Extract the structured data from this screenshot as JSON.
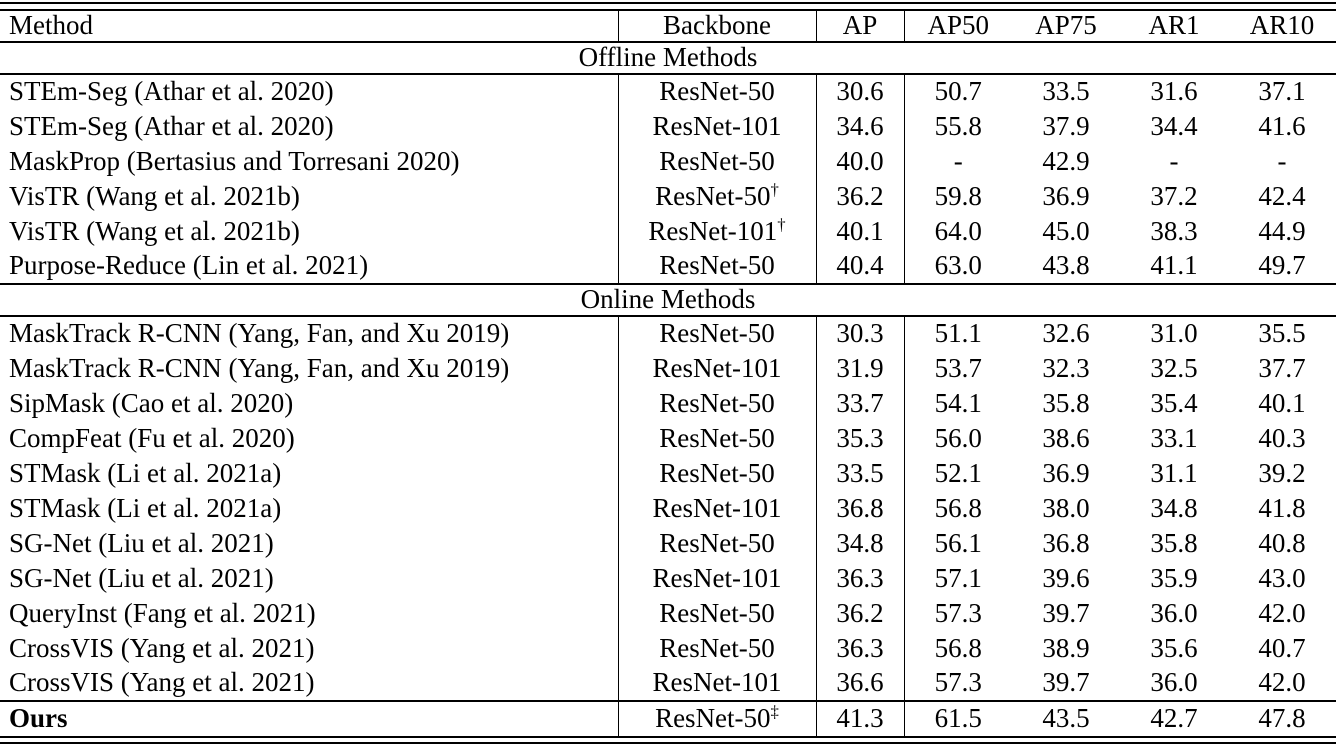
{
  "table": {
    "columns": [
      "Method",
      "Backbone",
      "AP",
      "AP50",
      "AP75",
      "AR1",
      "AR10"
    ],
    "sections": [
      {
        "title": "Offline Methods",
        "rows": [
          {
            "method": "STEm-Seg (Athar et al. 2020)",
            "backbone": "ResNet-50",
            "backbone_sup": "",
            "ap": "30.6",
            "ap50": "50.7",
            "ap75": "33.5",
            "ar1": "31.6",
            "ar10": "37.1"
          },
          {
            "method": "STEm-Seg (Athar et al. 2020)",
            "backbone": "ResNet-101",
            "backbone_sup": "",
            "ap": "34.6",
            "ap50": "55.8",
            "ap75": "37.9",
            "ar1": "34.4",
            "ar10": "41.6"
          },
          {
            "method": "MaskProp (Bertasius and Torresani 2020)",
            "backbone": "ResNet-50",
            "backbone_sup": "",
            "ap": "40.0",
            "ap50": "-",
            "ap75": "42.9",
            "ar1": "-",
            "ar10": "-"
          },
          {
            "method": "VisTR (Wang et al. 2021b)",
            "backbone": "ResNet-50",
            "backbone_sup": "†",
            "ap": "36.2",
            "ap50": "59.8",
            "ap75": "36.9",
            "ar1": "37.2",
            "ar10": "42.4"
          },
          {
            "method": "VisTR (Wang et al. 2021b)",
            "backbone": "ResNet-101",
            "backbone_sup": "†",
            "ap": "40.1",
            "ap50": "64.0",
            "ap75": "45.0",
            "ar1": "38.3",
            "ar10": "44.9"
          },
          {
            "method": "Purpose-Reduce (Lin et al. 2021)",
            "backbone": "ResNet-50",
            "backbone_sup": "",
            "ap": "40.4",
            "ap50": "63.0",
            "ap75": "43.8",
            "ar1": "41.1",
            "ar10": "49.7"
          }
        ]
      },
      {
        "title": "Online Methods",
        "rows": [
          {
            "method": "MaskTrack R-CNN (Yang, Fan, and Xu 2019)",
            "backbone": "ResNet-50",
            "backbone_sup": "",
            "ap": "30.3",
            "ap50": "51.1",
            "ap75": "32.6",
            "ar1": "31.0",
            "ar10": "35.5"
          },
          {
            "method": "MaskTrack R-CNN (Yang, Fan, and Xu 2019)",
            "backbone": "ResNet-101",
            "backbone_sup": "",
            "ap": "31.9",
            "ap50": "53.7",
            "ap75": "32.3",
            "ar1": "32.5",
            "ar10": "37.7"
          },
          {
            "method": "SipMask (Cao et al. 2020)",
            "backbone": "ResNet-50",
            "backbone_sup": "",
            "ap": "33.7",
            "ap50": "54.1",
            "ap75": "35.8",
            "ar1": "35.4",
            "ar10": "40.1"
          },
          {
            "method": "CompFeat (Fu et al. 2020)",
            "backbone": "ResNet-50",
            "backbone_sup": "",
            "ap": "35.3",
            "ap50": "56.0",
            "ap75": "38.6",
            "ar1": "33.1",
            "ar10": "40.3"
          },
          {
            "method": "STMask (Li et al. 2021a)",
            "backbone": "ResNet-50",
            "backbone_sup": "",
            "ap": "33.5",
            "ap50": "52.1",
            "ap75": "36.9",
            "ar1": "31.1",
            "ar10": "39.2"
          },
          {
            "method": "STMask (Li et al. 2021a)",
            "backbone": "ResNet-101",
            "backbone_sup": "",
            "ap": "36.8",
            "ap50": "56.8",
            "ap75": "38.0",
            "ar1": "34.8",
            "ar10": "41.8"
          },
          {
            "method": "SG-Net (Liu et al. 2021)",
            "backbone": "ResNet-50",
            "backbone_sup": "",
            "ap": "34.8",
            "ap50": "56.1",
            "ap75": "36.8",
            "ar1": "35.8",
            "ar10": "40.8"
          },
          {
            "method": "SG-Net (Liu et al. 2021)",
            "backbone": "ResNet-101",
            "backbone_sup": "",
            "ap": "36.3",
            "ap50": "57.1",
            "ap75": "39.6",
            "ar1": "35.9",
            "ar10": "43.0"
          },
          {
            "method": "QueryInst (Fang et al. 2021)",
            "backbone": "ResNet-50",
            "backbone_sup": "",
            "ap": "36.2",
            "ap50": "57.3",
            "ap75": "39.7",
            "ar1": "36.0",
            "ar10": "42.0"
          },
          {
            "method": "CrossVIS (Yang et al. 2021)",
            "backbone": "ResNet-50",
            "backbone_sup": "",
            "ap": "36.3",
            "ap50": "56.8",
            "ap75": "38.9",
            "ar1": "35.6",
            "ar10": "40.7"
          },
          {
            "method": "CrossVIS (Yang et al. 2021)",
            "backbone": "ResNet-101",
            "backbone_sup": "",
            "ap": "36.6",
            "ap50": "57.3",
            "ap75": "39.7",
            "ar1": "36.0",
            "ar10": "42.0"
          }
        ]
      }
    ],
    "final_row": {
      "method": "Ours",
      "bold": true,
      "backbone": "ResNet-50",
      "backbone_sup": "‡",
      "ap": "41.3",
      "ap50": "61.5",
      "ap75": "43.5",
      "ar1": "42.7",
      "ar10": "47.8"
    }
  }
}
